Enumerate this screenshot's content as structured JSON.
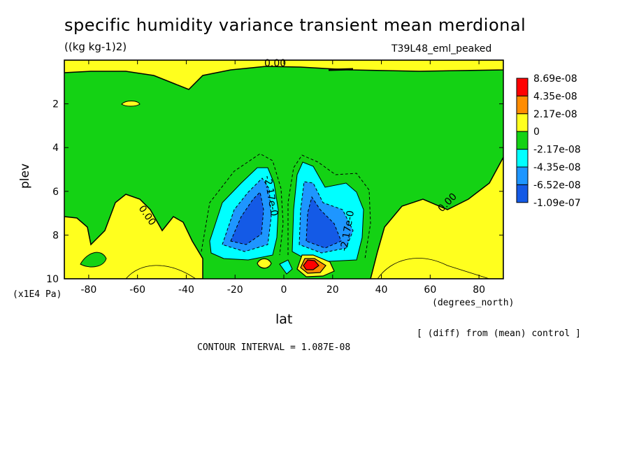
{
  "chart_data": {
    "type": "heatmap",
    "title": "specific humidity variance transient mean merdional",
    "subtitle": "((kg kg-1)2)",
    "run_label": "T39L48_eml_peaked",
    "xlabel": "lat",
    "x_units": "(degrees_north)",
    "ylabel": "plev",
    "y_units": "(x1E4 Pa)",
    "xlim": [
      -90,
      90
    ],
    "ylim": [
      10,
      0
    ],
    "x_ticks": [
      "-80",
      "-60",
      "-40",
      "-20",
      "0",
      "20",
      "40",
      "60",
      "80"
    ],
    "x_tick_values": [
      -80,
      -60,
      -40,
      -20,
      0,
      20,
      40,
      60,
      80
    ],
    "y_ticks": [
      "2",
      "4",
      "6",
      "8",
      "10"
    ],
    "y_tick_values": [
      2,
      4,
      6,
      8,
      10
    ],
    "contour_labels": [
      "0.00",
      "0.00",
      "0.00",
      "-2.17e-0",
      "-2.17e-0"
    ],
    "contour_interval": "CONTOUR INTERVAL = 1.087E-08",
    "note": "[ (diff) from (mean) control ]",
    "colorbar": {
      "labels": [
        "8.69e-08",
        "4.35e-08",
        "2.17e-08",
        "0",
        "-2.17e-08",
        "-4.35e-08",
        "-6.52e-08",
        "-1.09e-07"
      ],
      "colors": [
        "#ff0000",
        "#ff8c00",
        "#ffff1e",
        "#14d214",
        "#00ffff",
        "#1e96ff",
        "#145ae6"
      ]
    },
    "regions": [
      {
        "level": "0 to 2.17e-08",
        "color": "#ffff1e",
        "desc": "positive band upper level near 0-30N"
      },
      {
        "level": "0 to 2.17e-08",
        "color": "#ffff1e",
        "desc": "lower-level positive, high latitudes"
      },
      {
        "level": "-2.17e-08 to -4.35e-08",
        "color": "#00ffff",
        "desc": "subtropical negative lobes"
      },
      {
        "level": "-4.35e-08 to -6.52e-08",
        "color": "#1e96ff",
        "desc": "inner negative"
      },
      {
        "level": "< -6.52e-08",
        "color": "#145ae6",
        "desc": "core negative"
      },
      {
        "level": "> 4.35e-08",
        "color": "#ff0000",
        "desc": "peak near 10N, 9.3"
      }
    ]
  }
}
